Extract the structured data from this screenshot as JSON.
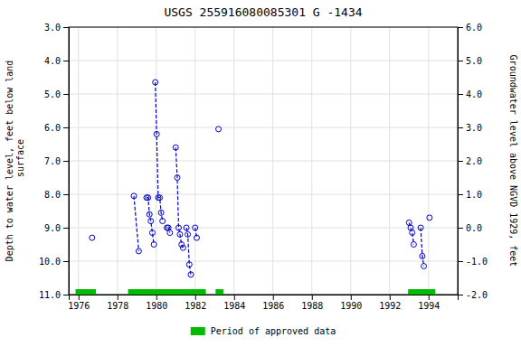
{
  "chart_data": {
    "type": "line",
    "title": "USGS 255916080085301 G  -1434",
    "y_label": "Depth to water level, feet below land\n surface",
    "y2_label": "Groundwater level above NGVD 1929, feet",
    "xlim": [
      1975.5,
      1995.5
    ],
    "xticks": [
      1976,
      1978,
      1980,
      1982,
      1984,
      1986,
      1988,
      1990,
      1992,
      1994
    ],
    "ylim": [
      11.0,
      3.0
    ],
    "yticks": [
      {
        "value": 3.0,
        "label": "3.0"
      },
      {
        "value": 4.0,
        "label": "4.0"
      },
      {
        "value": 5.0,
        "label": "5.0"
      },
      {
        "value": 6.0,
        "label": "6.0"
      },
      {
        "value": 7.0,
        "label": "7.0"
      },
      {
        "value": 8.0,
        "label": "8.0"
      },
      {
        "value": 9.0,
        "label": "9.0"
      },
      {
        "value": 10.0,
        "label": "10.0"
      },
      {
        "value": 11.0,
        "label": "11.0"
      }
    ],
    "y2lim": [
      -2.0,
      6.0
    ],
    "y2ticks": [
      {
        "value": 6.0,
        "label": "6.0"
      },
      {
        "value": 5.0,
        "label": "5.0"
      },
      {
        "value": 4.0,
        "label": "4.0"
      },
      {
        "value": 3.0,
        "label": "3.0"
      },
      {
        "value": 2.0,
        "label": "2.0"
      },
      {
        "value": 1.0,
        "label": "1.0"
      },
      {
        "value": 0.0,
        "label": "0.0"
      },
      {
        "value": -1.0,
        "label": "-1.0"
      },
      {
        "value": -2.0,
        "label": "-2.0"
      }
    ],
    "grid": true,
    "legend": "bottom",
    "series": [
      {
        "x": [
          1976.7
        ],
        "values": [
          9.3
        ],
        "color": "#0000cc",
        "marker": "circle",
        "line_style": "dashed"
      },
      {
        "x": [
          1978.85,
          1979.1
        ],
        "values": [
          8.05,
          9.7
        ],
        "color": "#0000cc",
        "marker": "circle",
        "line_style": "dashed"
      },
      {
        "x": [
          1979.5,
          1979.58,
          1979.65,
          1979.72,
          1979.8,
          1979.88
        ],
        "values": [
          8.1,
          8.1,
          8.6,
          8.8,
          9.15,
          9.5
        ],
        "color": "#0000cc",
        "marker": "circle",
        "line_style": "dashed"
      },
      {
        "x": [
          1979.95,
          1980.02,
          1980.1,
          1980.18,
          1980.25,
          1980.32
        ],
        "values": [
          4.65,
          6.2,
          8.1,
          8.1,
          8.55,
          8.8
        ],
        "color": "#0000cc",
        "marker": "circle",
        "line_style": "dashed"
      },
      {
        "x": [
          1980.55,
          1980.62,
          1980.7
        ],
        "values": [
          9.0,
          9.0,
          9.15
        ],
        "color": "#0000cc",
        "marker": "circle",
        "line_style": "dashed"
      },
      {
        "x": [
          1981.0,
          1981.08,
          1981.15,
          1981.22,
          1981.3,
          1981.38
        ],
        "values": [
          6.6,
          7.5,
          9.0,
          9.2,
          9.5,
          9.6
        ],
        "color": "#0000cc",
        "marker": "circle",
        "line_style": "dashed"
      },
      {
        "x": [
          1981.55,
          1981.62,
          1981.7,
          1981.78
        ],
        "values": [
          9.0,
          9.2,
          10.1,
          10.4
        ],
        "color": "#0000cc",
        "marker": "circle",
        "line_style": "dashed"
      },
      {
        "x": [
          1982.0,
          1982.08
        ],
        "values": [
          9.0,
          9.3
        ],
        "color": "#0000cc",
        "marker": "circle",
        "line_style": "dashed"
      },
      {
        "x": [
          1983.2
        ],
        "values": [
          6.05
        ],
        "color": "#0000cc",
        "marker": "circle",
        "line_style": "dashed"
      },
      {
        "x": [
          1993.0,
          1993.08,
          1993.16,
          1993.24
        ],
        "values": [
          8.85,
          9.0,
          9.15,
          9.5
        ],
        "color": "#0000cc",
        "marker": "circle",
        "line_style": "dashed"
      },
      {
        "x": [
          1993.6,
          1993.68,
          1993.76
        ],
        "values": [
          9.0,
          9.85,
          10.15
        ],
        "color": "#0000cc",
        "marker": "circle",
        "line_style": "dashed"
      },
      {
        "x": [
          1994.05
        ],
        "values": [
          8.7
        ],
        "color": "#0000cc",
        "marker": "circle",
        "line_style": "dashed"
      }
    ],
    "bands": [
      {
        "name": "Period of approved data",
        "color": "#00bb00",
        "start": [
          1975.85,
          1978.55,
          1983.05,
          1992.95
        ],
        "end": [
          1976.9,
          1982.55,
          1983.45,
          1994.35
        ]
      }
    ]
  }
}
